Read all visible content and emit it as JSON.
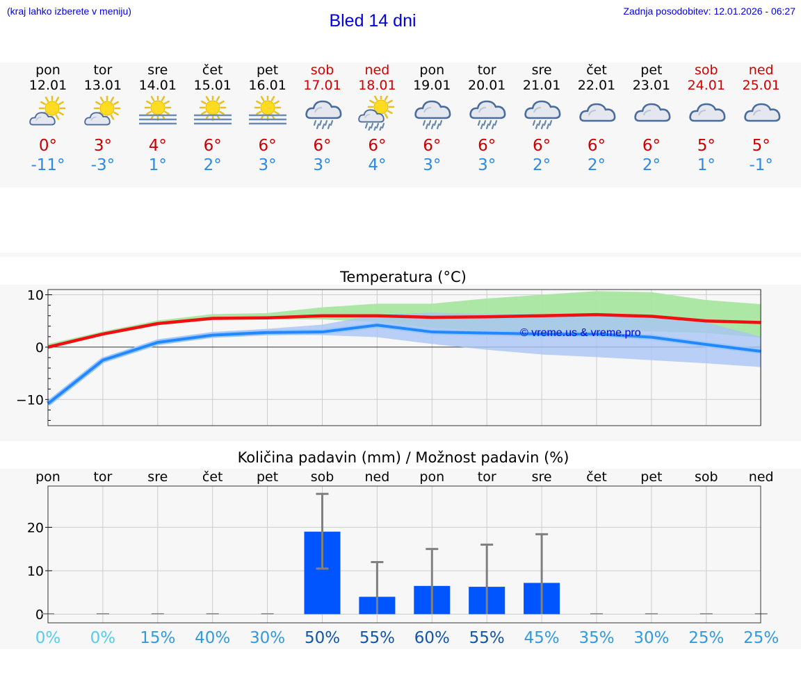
{
  "header": {
    "hint": "(kraj lahko izberete v meniju)",
    "title": "Bled 14 dni",
    "updated": "Zadnja posodobitev: 12.01.2026 - 06:27"
  },
  "days": [
    {
      "name": "pon",
      "date": "12.01",
      "weekend": false,
      "icon": "sun-cloud-icon",
      "tmax": "0°",
      "tmin": "-11°"
    },
    {
      "name": "tor",
      "date": "13.01",
      "weekend": false,
      "icon": "sun-cloud-icon",
      "tmax": "3°",
      "tmin": "-3°"
    },
    {
      "name": "sre",
      "date": "14.01",
      "weekend": false,
      "icon": "sun-fog-icon",
      "tmax": "4°",
      "tmin": "1°"
    },
    {
      "name": "čet",
      "date": "15.01",
      "weekend": false,
      "icon": "sun-fog-icon",
      "tmax": "6°",
      "tmin": "2°"
    },
    {
      "name": "pet",
      "date": "16.01",
      "weekend": false,
      "icon": "sun-fog-icon",
      "tmax": "6°",
      "tmin": "3°"
    },
    {
      "name": "sob",
      "date": "17.01",
      "weekend": true,
      "icon": "cloud-rain-icon",
      "tmax": "6°",
      "tmin": "3°"
    },
    {
      "name": "ned",
      "date": "18.01",
      "weekend": true,
      "icon": "sun-cloud-rain-icon",
      "tmax": "6°",
      "tmin": "4°"
    },
    {
      "name": "pon",
      "date": "19.01",
      "weekend": false,
      "icon": "cloud-rain-icon",
      "tmax": "6°",
      "tmin": "3°"
    },
    {
      "name": "tor",
      "date": "20.01",
      "weekend": false,
      "icon": "cloud-rain-icon",
      "tmax": "6°",
      "tmin": "3°"
    },
    {
      "name": "sre",
      "date": "21.01",
      "weekend": false,
      "icon": "cloud-rain-icon",
      "tmax": "6°",
      "tmin": "2°"
    },
    {
      "name": "čet",
      "date": "22.01",
      "weekend": false,
      "icon": "cloud-icon",
      "tmax": "6°",
      "tmin": "2°"
    },
    {
      "name": "pet",
      "date": "23.01",
      "weekend": false,
      "icon": "cloud-icon",
      "tmax": "6°",
      "tmin": "2°"
    },
    {
      "name": "sob",
      "date": "24.01",
      "weekend": true,
      "icon": "cloud-icon",
      "tmax": "5°",
      "tmin": "1°"
    },
    {
      "name": "ned",
      "date": "25.01",
      "weekend": true,
      "icon": "cloud-icon",
      "tmax": "5°",
      "tmin": "-1°"
    }
  ],
  "colors": {
    "max_line": "#ee1111",
    "min_line": "#2288ff",
    "max_band": "#a8e6a0",
    "min_band": "#a9c4f5",
    "bar": "#0055ff",
    "errorbar": "#808080",
    "weekend": "#d00000",
    "title_blue": "#0000e0"
  },
  "chart_data": [
    {
      "type": "line",
      "title": "Temperatura (°C)",
      "xlabel": "",
      "ylabel": "",
      "ylim": [
        -15,
        11
      ],
      "yticks": [
        -10,
        0,
        10
      ],
      "watermark": "© vreme.us & vreme.pro",
      "x": [
        0,
        1,
        2,
        3,
        4,
        5,
        6,
        7,
        8,
        9,
        10,
        11,
        12,
        13
      ],
      "series": [
        {
          "name": "max",
          "values": [
            0,
            2.5,
            4.5,
            5.5,
            5.6,
            6.0,
            6.0,
            5.7,
            5.8,
            6.0,
            6.2,
            5.9,
            5.0,
            4.7
          ],
          "band_low": [
            -0.3,
            2.2,
            4.2,
            5.2,
            5.3,
            5.3,
            4.8,
            3.6,
            3.2,
            3.0,
            3.0,
            3.0,
            2.7,
            1.8
          ],
          "band_high": [
            0.6,
            3.0,
            5.1,
            6.3,
            6.5,
            7.6,
            8.3,
            8.3,
            9.3,
            10.0,
            10.7,
            10.5,
            9.0,
            8.2
          ]
        },
        {
          "name": "min",
          "values": [
            -10.8,
            -2.5,
            0.9,
            2.3,
            2.8,
            2.9,
            4.2,
            2.9,
            2.7,
            2.5,
            2.5,
            1.9,
            0.5,
            -0.8
          ],
          "band_low": [
            -11.2,
            -2.9,
            0.5,
            1.9,
            2.4,
            2.3,
            1.9,
            0.6,
            -0.5,
            -1.4,
            -1.9,
            -2.5,
            -3.1,
            -3.8
          ],
          "band_high": [
            -10.2,
            -2.0,
            1.5,
            2.9,
            3.5,
            4.3,
            6.2,
            6.6,
            6.3,
            6.3,
            6.1,
            5.6,
            4.7,
            2.0
          ]
        }
      ]
    },
    {
      "type": "bar",
      "title": "Količina padavin (mm) / Možnost padavin (%)",
      "categories": [
        "pon",
        "tor",
        "sre",
        "čet",
        "pet",
        "sob",
        "ned",
        "pon",
        "tor",
        "sre",
        "čet",
        "pet",
        "sob",
        "ned"
      ],
      "values": [
        0,
        0,
        0,
        0,
        0,
        19,
        4,
        6.5,
        6.3,
        7.2,
        0,
        0,
        0,
        0
      ],
      "err_low": [
        0,
        0,
        0,
        0,
        0,
        10.5,
        0,
        0,
        0,
        0,
        0,
        0,
        0,
        0
      ],
      "err_high": [
        0,
        0,
        0,
        0,
        0,
        27.7,
        12,
        15,
        16,
        18.4,
        0,
        0,
        0,
        0
      ],
      "probability": [
        "0%",
        "0%",
        "15%",
        "40%",
        "30%",
        "50%",
        "55%",
        "60%",
        "55%",
        "45%",
        "35%",
        "30%",
        "25%",
        "25%"
      ],
      "prob_colors": [
        "#55ccee",
        "#55ccee",
        "#3399dd",
        "#3399dd",
        "#3399dd",
        "#1155aa",
        "#1155aa",
        "#1155aa",
        "#1155aa",
        "#3399dd",
        "#3399dd",
        "#3399dd",
        "#3399dd",
        "#3399dd"
      ],
      "ylim": [
        -2,
        29.5
      ],
      "yticks": [
        0,
        10,
        20
      ]
    }
  ]
}
